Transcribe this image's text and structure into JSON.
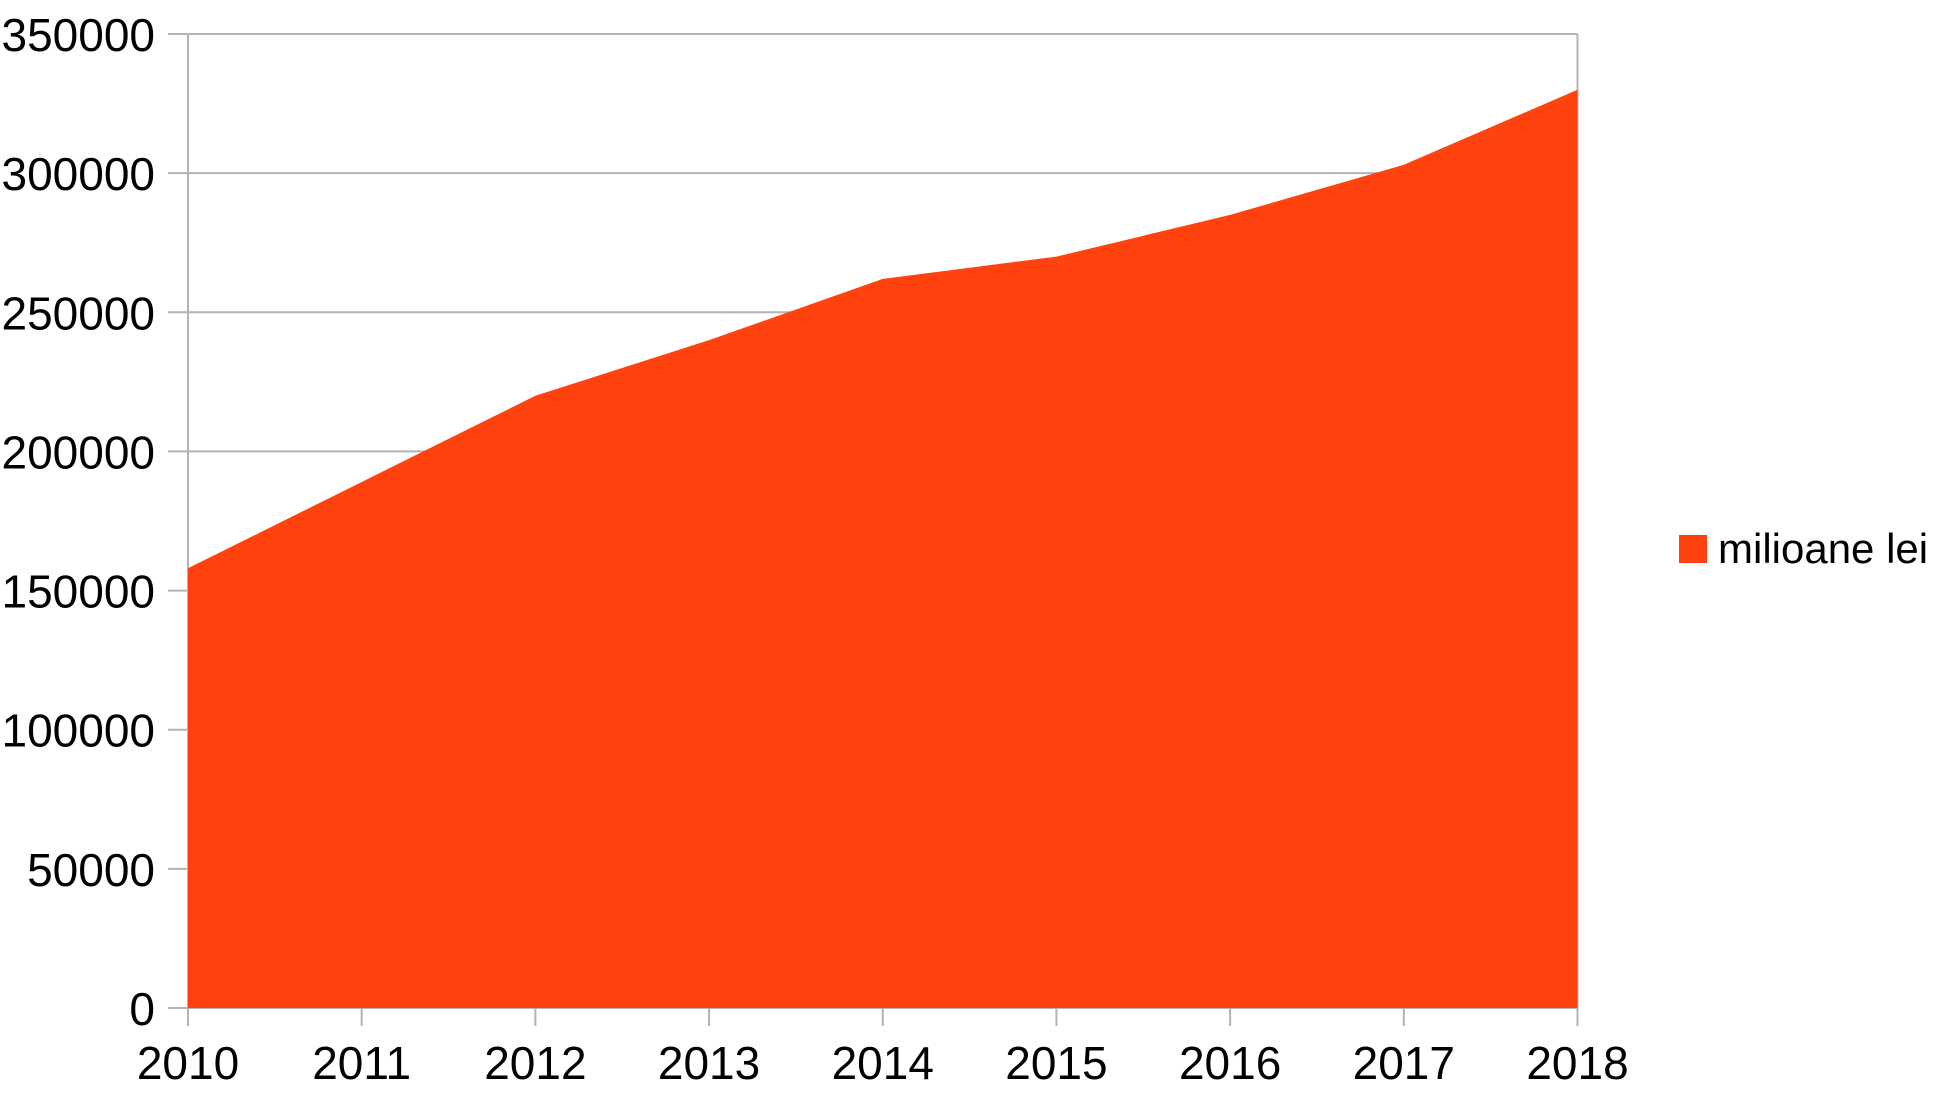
{
  "chart_data": {
    "type": "area",
    "title": "",
    "categories": [
      "2010",
      "2011",
      "2012",
      "2013",
      "2014",
      "2015",
      "2016",
      "2017",
      "2018"
    ],
    "series": [
      {
        "name": "milioane lei",
        "values": [
          158000,
          189000,
          220000,
          240000,
          262000,
          270000,
          285000,
          303000,
          330000
        ]
      }
    ],
    "xlabel": "",
    "ylabel": "",
    "ylim": [
      0,
      350000
    ],
    "ytick_interval": 50000,
    "y_tick_labels": [
      "0",
      "50000",
      "100000",
      "150000",
      "200000",
      "250000",
      "300000",
      "350000"
    ],
    "grid": "horizontal",
    "legend_position": "right",
    "colors": {
      "area": "#ff420e",
      "grid": "#b3b3b3",
      "axis": "#b3b3b3",
      "text": "#000000",
      "background": "#ffffff"
    }
  }
}
